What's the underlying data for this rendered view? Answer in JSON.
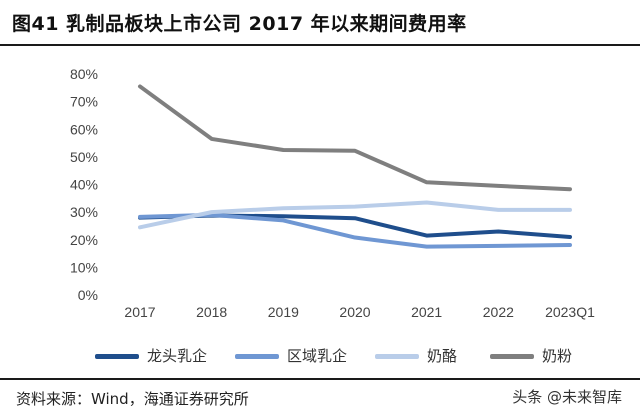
{
  "header": {
    "title": "图41 乳制品板块上市公司 2017 年以来期间费用率"
  },
  "footer": {
    "source": "资料来源：Wind，海通证券研究所",
    "watermark": "头条 @未来智库"
  },
  "colors": {
    "series_1": "#1f4e8c",
    "series_2": "#6f97d3",
    "series_3": "#b9cde9",
    "series_4": "#7f7f7f"
  },
  "chart_data": {
    "type": "line",
    "x": [
      "2017",
      "2018",
      "2019",
      "2020",
      "2021",
      "2022",
      "2023Q1"
    ],
    "ylim": [
      0,
      80
    ],
    "yticks": [
      "0%",
      "10%",
      "20%",
      "30%",
      "40%",
      "50%",
      "60%",
      "70%",
      "80%"
    ],
    "grid": false,
    "legend_position": "bottom",
    "series": [
      {
        "name": "龙头乳企",
        "values": [
          28,
          28.8,
          28.5,
          27.8,
          21.5,
          23,
          21
        ]
      },
      {
        "name": "区域乳企",
        "values": [
          28.3,
          29,
          27,
          20.8,
          17.5,
          17.8,
          18.1
        ]
      },
      {
        "name": "奶酪",
        "values": [
          24.5,
          30,
          31.4,
          32,
          33.5,
          30.8,
          30.8
        ]
      },
      {
        "name": "奶粉",
        "values": [
          75.5,
          56.5,
          52.5,
          52.2,
          40.8,
          39.5,
          38.3
        ]
      }
    ]
  }
}
